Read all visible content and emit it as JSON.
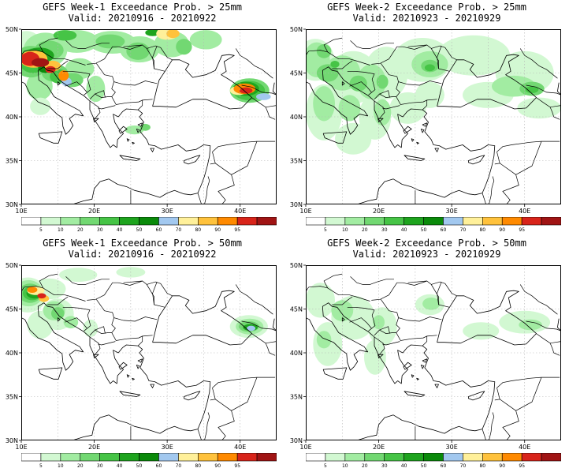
{
  "panels": [
    {
      "title_line1": "GEFS Week-1 Exceedance Prob. > 25mm",
      "title_line2": "Valid: 20210916 - 20210922",
      "week": 1,
      "threshold_mm": 25
    },
    {
      "title_line1": "GEFS Week-2 Exceedance Prob. > 25mm",
      "title_line2": "Valid: 20210923 - 20210929",
      "week": 2,
      "threshold_mm": 25
    },
    {
      "title_line1": "GEFS Week-1 Exceedance Prob. > 50mm",
      "title_line2": "Valid: 20210916 - 20210922",
      "week": 1,
      "threshold_mm": 50
    },
    {
      "title_line1": "GEFS Week-2 Exceedance Prob. > 50mm",
      "title_line2": "Valid: 20210923 - 20210929",
      "week": 2,
      "threshold_mm": 50
    }
  ],
  "axes": {
    "lon_range": [
      10,
      45
    ],
    "lat_range": [
      30,
      50
    ],
    "lon_ticks": [
      "10E",
      "20E",
      "30E",
      "40E"
    ],
    "lat_ticks": [
      "30N",
      "35N",
      "40N",
      "45N",
      "50N"
    ],
    "grid": "dotted"
  },
  "colorbar": {
    "levels": [
      "5",
      "10",
      "20",
      "30",
      "40",
      "50",
      "60",
      "70",
      "80",
      "90",
      "95"
    ],
    "colors": [
      "#ffffff",
      "#d2f8d2",
      "#a2eca2",
      "#72d872",
      "#46c446",
      "#1ea41e",
      "#0a8a0a",
      "#a2c8ef",
      "#fff09a",
      "#ffc23c",
      "#ff8a00",
      "#d8241a",
      "#a01414"
    ]
  }
}
